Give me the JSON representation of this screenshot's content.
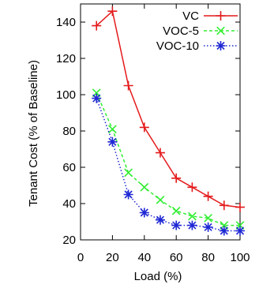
{
  "chart_data": {
    "type": "line",
    "xlabel": "Load (%)",
    "ylabel": "Tenant Cost (% of Baseline)",
    "xlim": [
      0,
      100
    ],
    "ylim": [
      20,
      150
    ],
    "xticks": [
      0,
      20,
      40,
      60,
      80,
      100
    ],
    "yticks": [
      20,
      40,
      60,
      80,
      100,
      120,
      140
    ],
    "grid": false,
    "legend_position": "top-right",
    "x": [
      10,
      20,
      30,
      40,
      50,
      60,
      70,
      80,
      90,
      100
    ],
    "series": [
      {
        "name": "VC",
        "color": "#e41a1c",
        "marker": "plus",
        "line_style": "solid",
        "values": [
          138,
          146,
          105,
          82,
          68,
          54,
          49,
          44,
          39,
          38
        ]
      },
      {
        "name": "VOC-5",
        "color": "#33ee33",
        "marker": "x",
        "line_style": "dashed",
        "values": [
          101,
          81,
          57,
          49,
          42,
          36,
          33,
          32,
          28,
          28
        ]
      },
      {
        "name": "VOC-10",
        "color": "#1f28d4",
        "marker": "star",
        "line_style": "dotted",
        "values": [
          98,
          74,
          45,
          35,
          31,
          28,
          28,
          27,
          25,
          25
        ]
      }
    ]
  }
}
